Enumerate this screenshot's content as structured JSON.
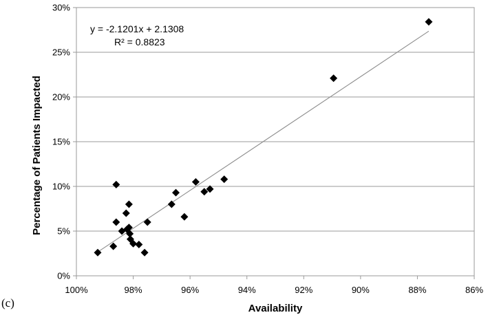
{
  "panel_label": "(c)",
  "chart_data": {
    "type": "scatter",
    "xlabel": "Availability",
    "ylabel": "Percentage of Patients Impacted",
    "xlim": [
      1.0,
      0.86
    ],
    "ylim": [
      0,
      0.3
    ],
    "x_reversed": true,
    "x_ticks": [
      1.0,
      0.98,
      0.96,
      0.94,
      0.92,
      0.9,
      0.88,
      0.86
    ],
    "x_tick_labels": [
      "100%",
      "98%",
      "96%",
      "94%",
      "92%",
      "90%",
      "88%",
      "86%"
    ],
    "y_ticks": [
      0,
      0.05,
      0.1,
      0.15,
      0.2,
      0.25,
      0.3
    ],
    "y_tick_labels": [
      "0%",
      "5%",
      "10%",
      "15%",
      "20%",
      "25%",
      "30%"
    ],
    "grid": "horizontal",
    "marker": "diamond",
    "marker_color": "#000000",
    "trendline": {
      "slope": -2.1201,
      "intercept": 2.1308,
      "x_range": [
        0.992,
        0.876
      ],
      "color": "#8c8c8c"
    },
    "annotations": [
      "y = -2.1201x + 2.1308",
      "R² = 0.8823"
    ],
    "points": [
      {
        "x": 0.9925,
        "y": 0.026
      },
      {
        "x": 0.987,
        "y": 0.033
      },
      {
        "x": 0.986,
        "y": 0.102
      },
      {
        "x": 0.986,
        "y": 0.06
      },
      {
        "x": 0.984,
        "y": 0.05
      },
      {
        "x": 0.9825,
        "y": 0.07
      },
      {
        "x": 0.9822,
        "y": 0.052
      },
      {
        "x": 0.9815,
        "y": 0.054
      },
      {
        "x": 0.9815,
        "y": 0.08
      },
      {
        "x": 0.9812,
        "y": 0.047
      },
      {
        "x": 0.981,
        "y": 0.041
      },
      {
        "x": 0.98,
        "y": 0.036
      },
      {
        "x": 0.978,
        "y": 0.035
      },
      {
        "x": 0.976,
        "y": 0.026
      },
      {
        "x": 0.975,
        "y": 0.06
      },
      {
        "x": 0.9665,
        "y": 0.08
      },
      {
        "x": 0.965,
        "y": 0.093
      },
      {
        "x": 0.962,
        "y": 0.066
      },
      {
        "x": 0.958,
        "y": 0.105
      },
      {
        "x": 0.955,
        "y": 0.094
      },
      {
        "x": 0.953,
        "y": 0.097
      },
      {
        "x": 0.948,
        "y": 0.108
      },
      {
        "x": 0.9095,
        "y": 0.221
      },
      {
        "x": 0.876,
        "y": 0.284
      }
    ]
  }
}
